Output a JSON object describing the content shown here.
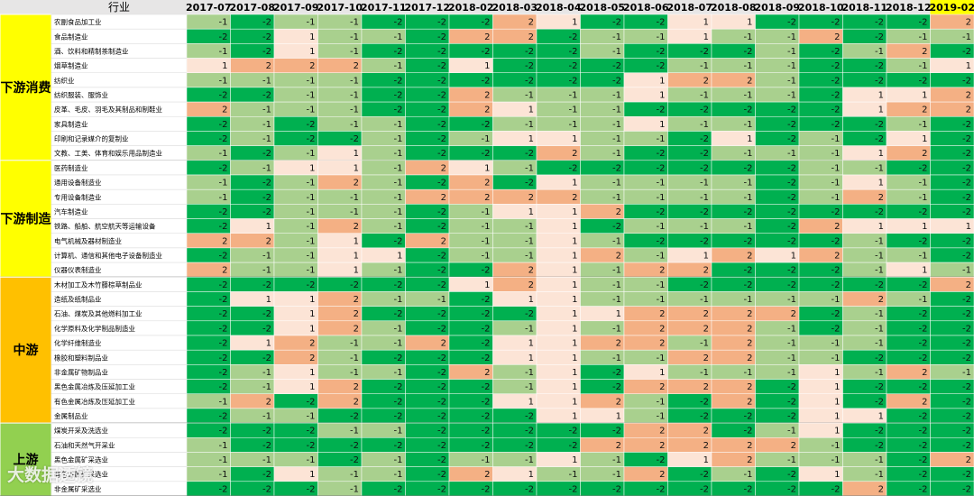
{
  "chart_data": {
    "type": "heatmap",
    "corner_label": "行业",
    "columns": [
      "2017-07",
      "2017-08",
      "2017-09",
      "2017-10",
      "2017-11",
      "2017-12",
      "2018-02",
      "2018-03",
      "2018-04",
      "2018-05",
      "2018-06",
      "2018-07",
      "2018-08",
      "2018-09",
      "2018-10",
      "2018-11",
      "2018-12",
      "2019-02"
    ],
    "groups": [
      {
        "name": "下游消费",
        "color": "#ffff00",
        "rows": [
          {
            "label": "农副食品加工业",
            "values": [
              -1,
              -2,
              -1,
              -1,
              -2,
              -2,
              -2,
              2,
              1,
              -2,
              -2,
              1,
              1,
              -2,
              -2,
              -2,
              -2,
              2
            ]
          },
          {
            "label": "食品制造业",
            "values": [
              -2,
              -2,
              1,
              -1,
              -1,
              -2,
              2,
              2,
              -2,
              -1,
              -1,
              1,
              -1,
              -1,
              2,
              -2,
              -1,
              -1
            ]
          },
          {
            "label": "酒、饮料和精制茶制造业",
            "values": [
              -1,
              -2,
              1,
              -1,
              -2,
              -2,
              -2,
              -2,
              -2,
              -1,
              -2,
              -2,
              -2,
              -1,
              -2,
              -1,
              2,
              -2
            ]
          },
          {
            "label": "烟草制造业",
            "values": [
              1,
              2,
              2,
              2,
              -1,
              -2,
              1,
              -2,
              -2,
              -2,
              -2,
              -1,
              -1,
              -1,
              -2,
              -2,
              -1,
              1
            ]
          },
          {
            "label": "纺织业",
            "values": [
              -1,
              -1,
              -1,
              -1,
              -2,
              -2,
              -2,
              -2,
              -2,
              -2,
              1,
              2,
              2,
              -1,
              -2,
              -2,
              -2,
              -2
            ]
          },
          {
            "label": "纺织服装、服饰业",
            "values": [
              -2,
              -2,
              -1,
              -1,
              -2,
              -2,
              2,
              -1,
              -1,
              -1,
              1,
              -1,
              -1,
              -1,
              -2,
              1,
              1,
              2
            ]
          },
          {
            "label": "皮革、毛皮、羽毛及其制品和制鞋业",
            "values": [
              2,
              -1,
              -1,
              -1,
              -2,
              -2,
              2,
              1,
              -1,
              -1,
              -2,
              -2,
              -2,
              -2,
              -2,
              1,
              2,
              2
            ]
          },
          {
            "label": "家具制造业",
            "values": [
              -2,
              -1,
              -2,
              -1,
              -1,
              -2,
              -2,
              -1,
              -1,
              -1,
              1,
              -1,
              -1,
              -2,
              -2,
              -2,
              -1,
              -2
            ]
          },
          {
            "label": "印刷和记录媒介的复制业",
            "values": [
              -2,
              -1,
              -2,
              -2,
              -1,
              -2,
              -1,
              1,
              1,
              -1,
              -1,
              -2,
              1,
              -2,
              -1,
              -2,
              1,
              -2
            ]
          },
          {
            "label": "文教、工美、体育和娱乐用品制造业",
            "values": [
              -1,
              -2,
              -1,
              1,
              -1,
              -2,
              -2,
              -2,
              2,
              -1,
              -2,
              -2,
              -1,
              -1,
              -1,
              1,
              2,
              -2
            ]
          }
        ]
      },
      {
        "name": "下游制造",
        "color": "#ffff00",
        "rows": [
          {
            "label": "医药制造业",
            "values": [
              -2,
              -1,
              1,
              1,
              -1,
              2,
              1,
              -1,
              -2,
              -2,
              -2,
              -2,
              -2,
              -2,
              -1,
              -1,
              -2,
              -2
            ]
          },
          {
            "label": "通用设备制造业",
            "values": [
              -1,
              -2,
              -1,
              2,
              -1,
              -2,
              2,
              -2,
              1,
              -1,
              -1,
              -1,
              -1,
              -2,
              -1,
              1,
              -1,
              -2
            ]
          },
          {
            "label": "专用设备制造业",
            "values": [
              -1,
              -2,
              -1,
              -1,
              -1,
              2,
              2,
              2,
              2,
              -1,
              -1,
              -1,
              -1,
              -2,
              -1,
              2,
              -1,
              -2
            ]
          },
          {
            "label": "汽车制造业",
            "values": [
              -2,
              -2,
              -1,
              -1,
              -1,
              -2,
              -1,
              1,
              1,
              2,
              -2,
              -2,
              -2,
              -2,
              -2,
              -2,
              -2,
              -2
            ]
          },
          {
            "label": "铁路、船舶、航空航天等运输设备",
            "values": [
              -2,
              1,
              -1,
              2,
              -1,
              -2,
              -1,
              -1,
              1,
              -2,
              -1,
              -1,
              -1,
              -2,
              2,
              1,
              1,
              1
            ]
          },
          {
            "label": "电气机械及器材制造业",
            "values": [
              2,
              2,
              -1,
              1,
              -2,
              2,
              -1,
              -1,
              1,
              -1,
              -2,
              -2,
              -2,
              -2,
              -2,
              -1,
              -2,
              -2
            ]
          },
          {
            "label": "计算机、通信和其他电子设备制造业",
            "values": [
              -2,
              -1,
              -1,
              1,
              1,
              -2,
              -1,
              -1,
              1,
              2,
              -1,
              1,
              2,
              1,
              2,
              -1,
              -1,
              -2
            ]
          },
          {
            "label": "仪器仪表制造业",
            "values": [
              2,
              -1,
              -1,
              1,
              -1,
              -2,
              -2,
              2,
              1,
              -1,
              2,
              2,
              -2,
              -2,
              -2,
              -1,
              1,
              -1
            ]
          }
        ]
      },
      {
        "name": "中游",
        "color": "#ffc000",
        "rows": [
          {
            "label": "木材加工及木竹藤棕草制品业",
            "values": [
              -2,
              -2,
              -2,
              -2,
              -2,
              -2,
              1,
              2,
              1,
              -1,
              -1,
              -2,
              -2,
              -2,
              -2,
              -2,
              -2,
              2
            ]
          },
          {
            "label": "造纸及纸制品业",
            "values": [
              -2,
              1,
              1,
              2,
              -1,
              -1,
              -2,
              1,
              1,
              -1,
              -1,
              -1,
              -1,
              -1,
              -1,
              2,
              -1,
              -2
            ]
          },
          {
            "label": "石油、煤炭及其他燃料加工业",
            "values": [
              -2,
              -2,
              1,
              2,
              -2,
              -2,
              -2,
              -2,
              1,
              1,
              2,
              2,
              2,
              2,
              -2,
              -1,
              -2,
              -2
            ]
          },
          {
            "label": "化学原料及化学制品制造业",
            "values": [
              -2,
              -2,
              1,
              2,
              -1,
              -2,
              -2,
              -1,
              1,
              -1,
              2,
              2,
              2,
              -1,
              -2,
              -1,
              -2,
              -2
            ]
          },
          {
            "label": "化学纤维制造业",
            "values": [
              -2,
              1,
              2,
              -1,
              -1,
              2,
              -2,
              1,
              1,
              2,
              2,
              -1,
              2,
              -1,
              -1,
              -1,
              -2,
              -2
            ]
          },
          {
            "label": "橡胶和塑料制品业",
            "values": [
              -2,
              -2,
              2,
              -1,
              -2,
              -2,
              -2,
              1,
              1,
              -1,
              -1,
              2,
              2,
              -1,
              -1,
              -2,
              -2,
              -2
            ]
          },
          {
            "label": "非金属矿物制品业",
            "values": [
              -2,
              -1,
              1,
              -1,
              -1,
              -2,
              2,
              -1,
              1,
              -2,
              1,
              -1,
              -1,
              -1,
              1,
              -1,
              2,
              -1
            ]
          },
          {
            "label": "黑色金属冶炼及压延加工业",
            "values": [
              -2,
              -1,
              1,
              2,
              -2,
              -2,
              -2,
              -1,
              1,
              -2,
              2,
              2,
              2,
              -2,
              1,
              -2,
              -2,
              -2
            ]
          },
          {
            "label": "有色金属冶炼及压延加工业",
            "values": [
              -1,
              2,
              -2,
              2,
              -2,
              -2,
              -2,
              1,
              1,
              2,
              -1,
              -2,
              2,
              -2,
              1,
              -2,
              2,
              -2
            ]
          },
          {
            "label": "金属制品业",
            "values": [
              -2,
              -1,
              -1,
              -2,
              -2,
              -2,
              -2,
              -2,
              1,
              1,
              -1,
              -2,
              -2,
              -2,
              1,
              1,
              -2,
              -2
            ]
          }
        ]
      },
      {
        "name": "上游",
        "color": "#92d050",
        "rows": [
          {
            "label": "煤炭开采及洗选业",
            "values": [
              -2,
              -2,
              -2,
              -1,
              -1,
              -2,
              -2,
              -2,
              -2,
              -2,
              2,
              2,
              -2,
              -1,
              1,
              -2,
              -2,
              -2
            ]
          },
          {
            "label": "石油和天然气开采业",
            "values": [
              -1,
              -2,
              -2,
              -2,
              -2,
              -2,
              -2,
              -2,
              -2,
              2,
              2,
              2,
              2,
              2,
              -1,
              -2,
              -2,
              -2
            ]
          },
          {
            "label": "黑色金属矿采选业",
            "values": [
              -1,
              -1,
              -1,
              -2,
              -1,
              -2,
              -1,
              -1,
              1,
              -1,
              -2,
              1,
              2,
              -1,
              -1,
              -1,
              -2,
              2
            ]
          },
          {
            "label": "有色金属矿采选业",
            "values": [
              -1,
              -2,
              1,
              -1,
              -1,
              -2,
              2,
              1,
              -1,
              -1,
              2,
              -2,
              -1,
              -2,
              1,
              -1,
              -2,
              -2
            ]
          },
          {
            "label": "非金属矿采选业",
            "values": [
              -2,
              -2,
              -2,
              -1,
              -2,
              -2,
              -2,
              -2,
              -2,
              -2,
              -2,
              -2,
              -2,
              -2,
              -2,
              2,
              -2,
              -2
            ]
          }
        ]
      }
    ],
    "highlight_column": "2019-02",
    "highlight_color": "#ffff00",
    "value_colors": {
      "-2": "#00b050",
      "-1": "#a9d08e",
      "1": "#fce4d6",
      "2": "#f4b084"
    },
    "header_bg": "#e7e6e6"
  },
  "watermark": "大数据透镜"
}
